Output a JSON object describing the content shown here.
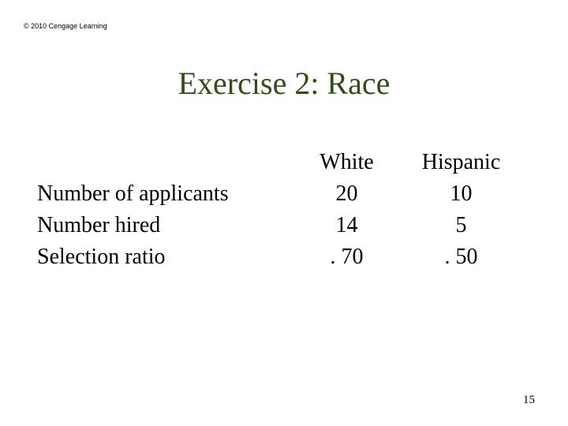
{
  "copyright": "© 2010 Cengage Learning",
  "title": "Exercise 2: Race",
  "table": {
    "headers": {
      "label": "",
      "col1": "White",
      "col2": "Hispanic"
    },
    "rows": [
      {
        "label": "Number of applicants",
        "col1": "20",
        "col2": "10"
      },
      {
        "label": "Number hired",
        "col1": "14",
        "col2": "  5"
      },
      {
        "label": "Selection ratio",
        "col1": ". 70",
        "col2": ". 50"
      }
    ]
  },
  "slide_number": "15",
  "colors": {
    "title": "#2d5016",
    "text": "#000000",
    "background": "#ffffff"
  },
  "fonts": {
    "title_size": 40,
    "body_size": 28,
    "copyright_size": 9,
    "slidenum_size": 15
  }
}
